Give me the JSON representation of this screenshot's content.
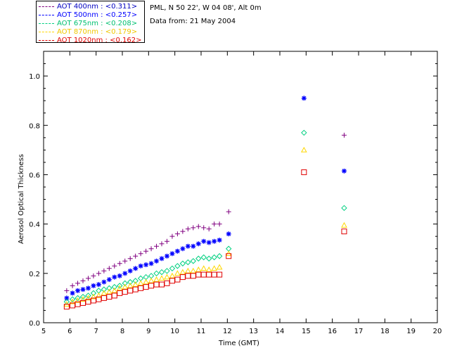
{
  "info": {
    "station": "PML, N 50 22', W 04 08', Alt 0m",
    "date": "Data from: 21 May 2004"
  },
  "chart_data": {
    "type": "scatter",
    "title": "",
    "xlabel": "Time (GMT)",
    "ylabel": "Aerosol Optical Thickness",
    "xlim": [
      5,
      20
    ],
    "ylim": [
      0,
      1.1
    ],
    "x_ticks": [
      5,
      6,
      7,
      8,
      9,
      10,
      11,
      12,
      13,
      14,
      15,
      16,
      17,
      18,
      19,
      20
    ],
    "y_ticks": [
      0.0,
      0.2,
      0.4,
      0.6,
      0.8,
      1.0
    ],
    "y_tick_labels": [
      "0.0",
      "0.2",
      "0.4",
      "0.6",
      "0.8",
      "1.0"
    ],
    "x": [
      5.88,
      6.1,
      6.3,
      6.5,
      6.7,
      6.9,
      7.1,
      7.3,
      7.5,
      7.7,
      7.9,
      8.1,
      8.3,
      8.5,
      8.7,
      8.9,
      9.1,
      9.3,
      9.5,
      9.7,
      9.9,
      10.1,
      10.3,
      10.5,
      10.7,
      10.9,
      11.1,
      11.3,
      11.5,
      11.7,
      12.05,
      14.92,
      16.45
    ],
    "series": [
      {
        "name": "AOT 400nm",
        "legend": "AOT  400nm : <0.311>",
        "color": "#800080",
        "marker": "plus",
        "values": [
          0.13,
          0.15,
          0.16,
          0.17,
          0.18,
          0.19,
          0.2,
          0.21,
          0.22,
          0.23,
          0.24,
          0.25,
          0.26,
          0.27,
          0.28,
          0.29,
          0.3,
          0.31,
          0.32,
          0.33,
          0.35,
          0.36,
          0.37,
          0.38,
          0.385,
          0.39,
          0.385,
          0.38,
          0.4,
          0.4,
          0.45,
          null,
          0.76
        ]
      },
      {
        "name": "AOT 500nm",
        "legend": "AOT  500nm : <0.257>",
        "color": "#0000ff",
        "marker": "asterisk",
        "values": [
          0.1,
          0.12,
          0.13,
          0.135,
          0.14,
          0.15,
          0.155,
          0.165,
          0.175,
          0.185,
          0.19,
          0.2,
          0.21,
          0.22,
          0.23,
          0.235,
          0.24,
          0.25,
          0.26,
          0.27,
          0.28,
          0.29,
          0.3,
          0.31,
          0.31,
          0.32,
          0.33,
          0.325,
          0.33,
          0.335,
          0.36,
          0.91,
          0.615
        ]
      },
      {
        "name": "AOT 675nm",
        "legend": "AOT  675nm : <0.208>",
        "color": "#00d080",
        "marker": "diamond",
        "values": [
          0.085,
          0.095,
          0.1,
          0.105,
          0.11,
          0.12,
          0.13,
          0.135,
          0.14,
          0.145,
          0.15,
          0.16,
          0.165,
          0.17,
          0.18,
          0.185,
          0.19,
          0.2,
          0.205,
          0.21,
          0.22,
          0.23,
          0.24,
          0.245,
          0.25,
          0.26,
          0.265,
          0.26,
          0.265,
          0.27,
          0.3,
          0.77,
          0.465
        ]
      },
      {
        "name": "AOT 870nm",
        "legend": "AOT  870nm : <0.179>",
        "color": "#ffd700",
        "marker": "triangle",
        "values": [
          0.075,
          0.085,
          0.09,
          0.095,
          0.1,
          0.105,
          0.11,
          0.12,
          0.125,
          0.13,
          0.14,
          0.145,
          0.15,
          0.155,
          0.16,
          0.165,
          0.17,
          0.175,
          0.18,
          0.185,
          0.19,
          0.2,
          0.205,
          0.21,
          0.21,
          0.215,
          0.22,
          0.215,
          0.22,
          0.225,
          0.28,
          0.7,
          0.395
        ]
      },
      {
        "name": "AOT 1020nm",
        "legend": "AOT 1020nm : <0.162>",
        "color": "#e00000",
        "marker": "square",
        "values": [
          0.065,
          0.07,
          0.075,
          0.08,
          0.085,
          0.09,
          0.095,
          0.1,
          0.105,
          0.11,
          0.12,
          0.125,
          0.13,
          0.135,
          0.14,
          0.145,
          0.15,
          0.155,
          0.155,
          0.16,
          0.17,
          0.175,
          0.185,
          0.19,
          0.19,
          0.195,
          0.195,
          0.195,
          0.195,
          0.195,
          0.27,
          0.61,
          0.37
        ]
      }
    ]
  }
}
